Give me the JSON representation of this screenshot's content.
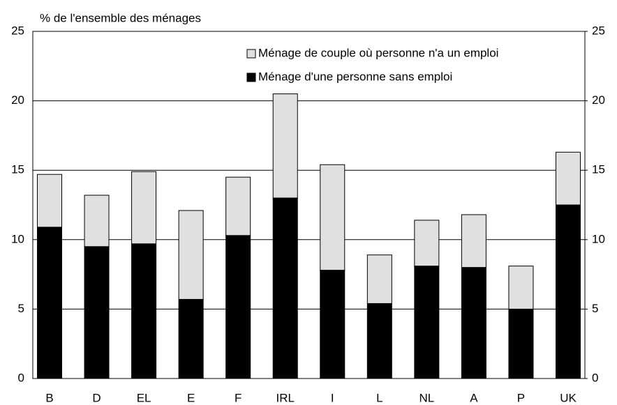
{
  "chart_data": {
    "type": "stacked_bar",
    "y_axis_label": "% de l'ensemble des ménages",
    "categories": [
      "B",
      "D",
      "EL",
      "E",
      "F",
      "IRL",
      "I",
      "L",
      "NL",
      "A",
      "P",
      "UK"
    ],
    "series": [
      {
        "name": "Ménage d'une personne sans emploi",
        "color": "#000000",
        "values": [
          10.9,
          9.5,
          9.7,
          5.7,
          10.3,
          13.0,
          7.8,
          5.4,
          8.1,
          8.0,
          5.0,
          12.5
        ]
      },
      {
        "name": "Ménage de couple où personne n'a un emploi",
        "color": "#e0e0e0",
        "values": [
          3.8,
          3.7,
          5.2,
          6.4,
          4.2,
          7.5,
          7.6,
          3.5,
          3.3,
          3.8,
          3.1,
          3.8
        ]
      }
    ],
    "ylim": [
      0,
      25
    ],
    "yticks": [
      0,
      5,
      10,
      15,
      20,
      25
    ],
    "y2lim": [
      0,
      25
    ],
    "y2ticks": [
      0,
      5,
      10,
      15,
      20,
      25
    ],
    "grid": true
  }
}
